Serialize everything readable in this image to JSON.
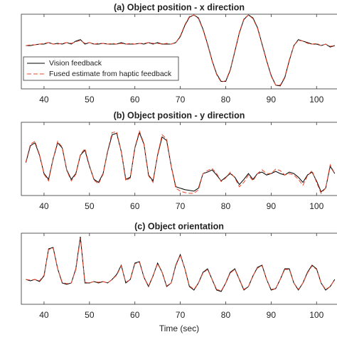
{
  "chart_data": [
    {
      "type": "line",
      "title": "(a) Object position - x direction",
      "x": [
        36,
        37,
        38,
        39,
        40,
        41,
        42,
        43,
        44,
        45,
        46,
        47,
        48,
        49,
        50,
        51,
        52,
        53,
        54,
        55,
        56,
        57,
        58,
        59,
        60,
        61,
        62,
        63,
        64,
        65,
        66,
        67,
        68,
        69,
        70,
        71,
        72,
        73,
        74,
        75,
        76,
        77,
        78,
        79,
        80,
        81,
        82,
        83,
        84,
        85,
        86,
        87,
        88,
        89,
        90,
        91,
        92,
        93,
        94,
        95,
        96,
        97,
        98,
        99,
        100,
        101,
        102,
        103,
        104
      ],
      "series": [
        {
          "name": "Vision feedback",
          "color": "#000000",
          "dash": false,
          "values": [
            0.58,
            0.58,
            0.59,
            0.6,
            0.6,
            0.62,
            0.6,
            0.61,
            0.6,
            0.62,
            0.6,
            0.64,
            0.66,
            0.6,
            0.62,
            0.6,
            0.6,
            0.61,
            0.6,
            0.6,
            0.6,
            0.62,
            0.6,
            0.6,
            0.6,
            0.61,
            0.6,
            0.62,
            0.6,
            0.62,
            0.6,
            0.6,
            0.6,
            0.62,
            0.7,
            0.85,
            0.96,
            0.99,
            0.95,
            0.8,
            0.6,
            0.38,
            0.2,
            0.1,
            0.1,
            0.25,
            0.5,
            0.75,
            0.93,
            0.99,
            0.95,
            0.82,
            0.6,
            0.38,
            0.18,
            0.05,
            0.04,
            0.15,
            0.38,
            0.58,
            0.66,
            0.64,
            0.62,
            0.6,
            0.6,
            0.58,
            0.6,
            0.56,
            0.58
          ]
        },
        {
          "name": "Fused estimate from haptic feedback",
          "color": "#e8462a",
          "dash": true,
          "values": [
            0.58,
            0.59,
            0.59,
            0.6,
            0.61,
            0.62,
            0.6,
            0.6,
            0.61,
            0.62,
            0.61,
            0.63,
            0.65,
            0.61,
            0.62,
            0.6,
            0.61,
            0.61,
            0.6,
            0.61,
            0.6,
            0.61,
            0.6,
            0.61,
            0.6,
            0.61,
            0.61,
            0.62,
            0.61,
            0.61,
            0.6,
            0.61,
            0.6,
            0.62,
            0.71,
            0.86,
            0.97,
            0.99,
            0.94,
            0.79,
            0.59,
            0.37,
            0.19,
            0.09,
            0.11,
            0.26,
            0.51,
            0.76,
            0.94,
            0.99,
            0.94,
            0.81,
            0.59,
            0.37,
            0.17,
            0.05,
            0.05,
            0.16,
            0.39,
            0.58,
            0.65,
            0.64,
            0.61,
            0.6,
            0.61,
            0.58,
            0.6,
            0.57,
            0.58
          ]
        }
      ],
      "xlim": [
        35,
        104.5
      ],
      "xticks": [
        40,
        50,
        60,
        70,
        80,
        90,
        100
      ],
      "ylim": [
        0,
        1
      ],
      "legend": "center left"
    },
    {
      "type": "line",
      "title": "(b) Object position - y direction",
      "x": [
        36,
        37,
        38,
        39,
        40,
        41,
        42,
        43,
        44,
        45,
        46,
        47,
        48,
        49,
        50,
        51,
        52,
        53,
        54,
        55,
        56,
        57,
        58,
        59,
        60,
        61,
        62,
        63,
        64,
        65,
        66,
        67,
        68,
        69,
        70,
        71,
        72,
        73,
        74,
        75,
        76,
        77,
        78,
        79,
        80,
        81,
        82,
        83,
        84,
        85,
        86,
        87,
        88,
        89,
        90,
        91,
        92,
        93,
        94,
        95,
        96,
        97,
        98,
        99,
        100,
        101,
        102,
        103,
        104
      ],
      "series": [
        {
          "name": "Vision feedback",
          "color": "#000000",
          "dash": false,
          "values": [
            0.45,
            0.68,
            0.72,
            0.55,
            0.3,
            0.22,
            0.5,
            0.72,
            0.65,
            0.35,
            0.22,
            0.3,
            0.55,
            0.62,
            0.4,
            0.22,
            0.18,
            0.3,
            0.6,
            0.83,
            0.85,
            0.6,
            0.22,
            0.25,
            0.65,
            0.86,
            0.7,
            0.28,
            0.2,
            0.55,
            0.8,
            0.75,
            0.4,
            0.12,
            0.1,
            0.08,
            0.07,
            0.06,
            0.1,
            0.3,
            0.32,
            0.35,
            0.28,
            0.2,
            0.25,
            0.3,
            0.25,
            0.15,
            0.22,
            0.3,
            0.22,
            0.3,
            0.32,
            0.28,
            0.3,
            0.33,
            0.3,
            0.28,
            0.32,
            0.3,
            0.25,
            0.18,
            0.28,
            0.32,
            0.2,
            0.05,
            0.1,
            0.4,
            0.3
          ]
        },
        {
          "name": "Fused estimate from haptic feedback",
          "color": "#e8462a",
          "dash": true,
          "values": [
            0.46,
            0.7,
            0.74,
            0.56,
            0.29,
            0.2,
            0.5,
            0.74,
            0.66,
            0.34,
            0.2,
            0.29,
            0.56,
            0.64,
            0.41,
            0.21,
            0.16,
            0.29,
            0.61,
            0.86,
            0.87,
            0.6,
            0.2,
            0.24,
            0.66,
            0.88,
            0.71,
            0.27,
            0.18,
            0.56,
            0.83,
            0.77,
            0.4,
            0.1,
            0.06,
            0.04,
            0.03,
            0.03,
            0.08,
            0.3,
            0.34,
            0.37,
            0.3,
            0.19,
            0.24,
            0.32,
            0.24,
            0.12,
            0.18,
            0.28,
            0.2,
            0.3,
            0.35,
            0.3,
            0.3,
            0.36,
            0.34,
            0.28,
            0.3,
            0.28,
            0.22,
            0.14,
            0.27,
            0.34,
            0.18,
            0.03,
            0.1,
            0.42,
            0.3
          ]
        }
      ],
      "xlim": [
        35,
        104.5
      ],
      "xticks": [
        40,
        50,
        60,
        70,
        80,
        90,
        100
      ],
      "ylim": [
        0,
        1
      ]
    },
    {
      "type": "line",
      "title": "(c) Object orientation",
      "xlabel": "Time (sec)",
      "x": [
        36,
        37,
        38,
        39,
        40,
        41,
        42,
        43,
        44,
        45,
        46,
        47,
        48,
        49,
        50,
        51,
        52,
        53,
        54,
        55,
        56,
        57,
        58,
        59,
        60,
        61,
        62,
        63,
        64,
        65,
        66,
        67,
        68,
        69,
        70,
        71,
        72,
        73,
        74,
        75,
        76,
        77,
        78,
        79,
        80,
        81,
        82,
        83,
        84,
        85,
        86,
        87,
        88,
        89,
        90,
        91,
        92,
        93,
        94,
        95,
        96,
        97,
        98,
        99,
        100,
        101,
        102,
        103,
        104
      ],
      "series": [
        {
          "name": "Vision feedback",
          "color": "#000000",
          "dash": false,
          "values": [
            0.35,
            0.33,
            0.35,
            0.32,
            0.4,
            0.78,
            0.8,
            0.5,
            0.3,
            0.28,
            0.3,
            0.5,
            0.95,
            0.3,
            0.3,
            0.32,
            0.3,
            0.32,
            0.3,
            0.35,
            0.42,
            0.55,
            0.3,
            0.35,
            0.58,
            0.6,
            0.38,
            0.25,
            0.4,
            0.58,
            0.45,
            0.25,
            0.3,
            0.55,
            0.7,
            0.5,
            0.25,
            0.2,
            0.3,
            0.45,
            0.5,
            0.35,
            0.2,
            0.18,
            0.3,
            0.45,
            0.5,
            0.35,
            0.2,
            0.25,
            0.4,
            0.52,
            0.55,
            0.35,
            0.2,
            0.22,
            0.35,
            0.5,
            0.5,
            0.3,
            0.2,
            0.3,
            0.45,
            0.55,
            0.5,
            0.3,
            0.2,
            0.25,
            0.35
          ]
        },
        {
          "name": "Fused estimate from haptic feedback",
          "color": "#e8462a",
          "dash": true,
          "values": [
            0.35,
            0.34,
            0.35,
            0.33,
            0.41,
            0.77,
            0.79,
            0.5,
            0.31,
            0.29,
            0.3,
            0.49,
            0.93,
            0.31,
            0.3,
            0.32,
            0.31,
            0.32,
            0.3,
            0.35,
            0.41,
            0.54,
            0.31,
            0.35,
            0.57,
            0.59,
            0.38,
            0.26,
            0.4,
            0.57,
            0.45,
            0.26,
            0.3,
            0.54,
            0.69,
            0.5,
            0.26,
            0.21,
            0.3,
            0.44,
            0.49,
            0.35,
            0.21,
            0.19,
            0.3,
            0.44,
            0.49,
            0.35,
            0.21,
            0.25,
            0.4,
            0.51,
            0.54,
            0.35,
            0.21,
            0.22,
            0.35,
            0.49,
            0.49,
            0.3,
            0.21,
            0.3,
            0.44,
            0.54,
            0.49,
            0.3,
            0.21,
            0.25,
            0.35
          ]
        }
      ],
      "xlim": [
        35,
        104.5
      ],
      "xticks": [
        40,
        50,
        60,
        70,
        80,
        90,
        100
      ],
      "ylim": [
        0,
        1
      ]
    }
  ]
}
